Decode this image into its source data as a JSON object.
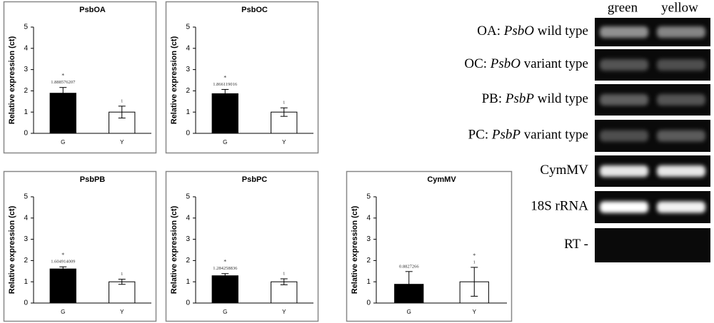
{
  "chart_data": [
    {
      "type": "bar",
      "title": "PsbOA",
      "ylabel": "Relative expression (ct)",
      "categories": [
        "G",
        "Y"
      ],
      "values": [
        1.888576207,
        1
      ],
      "errors": [
        0.27,
        0.28
      ],
      "marks": [
        "*",
        null
      ],
      "colors": [
        "#000000",
        "#ffffff"
      ],
      "ylim": [
        0,
        5
      ],
      "yticks": [
        0,
        1,
        2,
        3,
        4,
        5
      ]
    },
    {
      "type": "bar",
      "title": "PsbOC",
      "ylabel": "Relative expression (ct)",
      "categories": [
        "G",
        "Y"
      ],
      "values": [
        1.866119016,
        1
      ],
      "errors": [
        0.2,
        0.2
      ],
      "marks": [
        "*",
        null
      ],
      "colors": [
        "#000000",
        "#ffffff"
      ],
      "ylim": [
        0,
        5
      ],
      "yticks": [
        0,
        1,
        2,
        3,
        4,
        5
      ]
    },
    {
      "type": "bar",
      "title": "PsbPB",
      "ylabel": "Relative expression (ct)",
      "categories": [
        "G",
        "Y"
      ],
      "values": [
        1.604914009,
        1
      ],
      "errors": [
        0.1,
        0.12
      ],
      "marks": [
        "*",
        null
      ],
      "colors": [
        "#000000",
        "#ffffff"
      ],
      "ylim": [
        0,
        5
      ],
      "yticks": [
        0,
        1,
        2,
        3,
        4,
        5
      ]
    },
    {
      "type": "bar",
      "title": "PsbPC",
      "ylabel": "Relative expression (ct)",
      "categories": [
        "G",
        "Y"
      ],
      "values": [
        1.284258836,
        1
      ],
      "errors": [
        0.1,
        0.14
      ],
      "marks": [
        "*",
        null
      ],
      "colors": [
        "#000000",
        "#ffffff"
      ],
      "ylim": [
        0,
        5
      ],
      "yticks": [
        0,
        1,
        2,
        3,
        4,
        5
      ]
    },
    {
      "type": "bar",
      "title": "CymMV",
      "ylabel": "Relative expression (ct)",
      "categories": [
        "G",
        "Y"
      ],
      "values": [
        0.8827266,
        1
      ],
      "errors": [
        0.6,
        0.68
      ],
      "marks": [
        null,
        "*"
      ],
      "colors": [
        "#000000",
        "#ffffff"
      ],
      "ylim": [
        0,
        5
      ],
      "yticks": [
        0,
        1,
        2,
        3,
        4,
        5
      ]
    }
  ],
  "gel": {
    "columns": [
      "green",
      "yellow"
    ],
    "rows": [
      [
        "OA: ",
        "PsbO",
        " wild type"
      ],
      [
        "OC: ",
        "PsbO",
        " variant type"
      ],
      [
        "PB: ",
        "PsbP",
        " wild type"
      ],
      [
        "PC: ",
        "PsbP",
        " variant type"
      ],
      [
        "CymMV"
      ],
      [
        "18S rRNA"
      ],
      [
        "RT -"
      ]
    ]
  }
}
